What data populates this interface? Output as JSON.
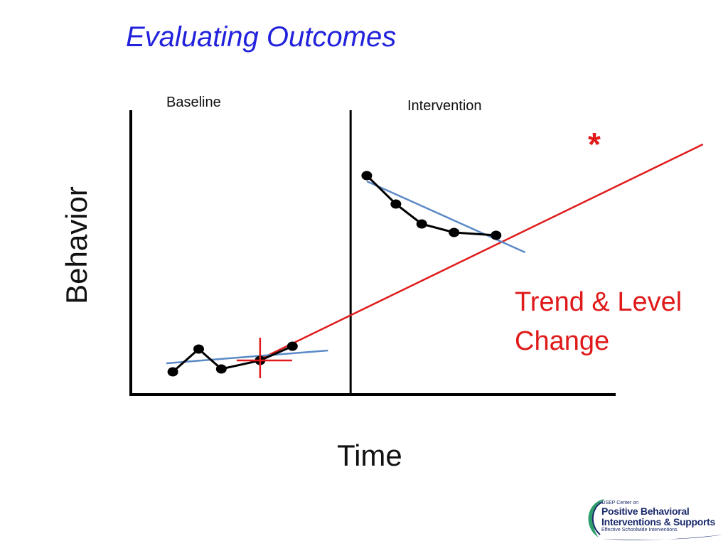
{
  "slide": {
    "title": "Evaluating Outcomes"
  },
  "chart_data": {
    "type": "line",
    "title": "",
    "xlabel": "Time",
    "ylabel": "Behavior",
    "xlim": [
      0,
      15
    ],
    "ylim": [
      0,
      10
    ],
    "grid": false,
    "phases": [
      {
        "name": "Baseline",
        "x_start": 0,
        "x_end": 6.8
      },
      {
        "name": "Intervention",
        "x_start": 6.8,
        "x_end": 15
      }
    ],
    "phase_change_x": 6.8,
    "series": [
      {
        "phase": "Baseline",
        "x": [
          1.3,
          2.1,
          2.8,
          4.0,
          5.0
        ],
        "y": [
          0.8,
          1.6,
          0.9,
          1.2,
          1.7
        ],
        "color": "#000000"
      },
      {
        "phase": "Intervention",
        "x": [
          7.3,
          8.2,
          9.0,
          10.0,
          11.3
        ],
        "y": [
          7.7,
          6.7,
          6.0,
          5.7,
          5.6
        ],
        "color": "#000000"
      }
    ],
    "trend_lines": [
      {
        "phase": "Baseline",
        "x": [
          1.1,
          6.1
        ],
        "y": [
          1.1,
          1.55
        ],
        "color": "#5b8ac6"
      },
      {
        "phase": "Intervention",
        "x": [
          7.3,
          12.2
        ],
        "y": [
          7.5,
          5.0
        ],
        "color": "#5b8ac6"
      }
    ],
    "projection_line": {
      "x": [
        4.1,
        17.7
      ],
      "y": [
        1.3,
        8.8
      ],
      "color": "#e01a1a"
    },
    "level_marker": {
      "x": 4.0,
      "y": 1.2,
      "color": "#e01a1a"
    },
    "annotations": [
      {
        "text_lines": [
          "Trend & Level",
          "Change"
        ],
        "color": "#e01a1a"
      },
      {
        "text": "*",
        "color": "#e01a1a"
      }
    ]
  },
  "logo": {
    "line1": "OSEP Center on",
    "line2": "Positive Behavioral",
    "line3": "Interventions & Supports",
    "line4": "Effective Schoolwide Interventions",
    "color": "#1b2a6b"
  }
}
